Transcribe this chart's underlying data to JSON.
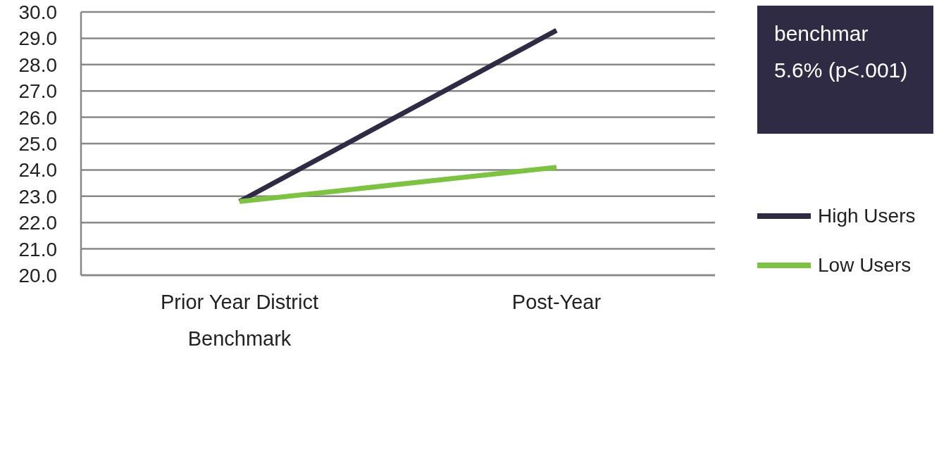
{
  "chart_data": {
    "type": "line",
    "categories": [
      "Prior Year District Benchmark",
      "Post-Year"
    ],
    "series": [
      {
        "name": "High Users",
        "color": "#2f2b45",
        "values": [
          22.8,
          29.3
        ]
      },
      {
        "name": "Low Users",
        "color": "#7dc242",
        "values": [
          22.8,
          24.1
        ]
      }
    ],
    "ylim": [
      20,
      30
    ],
    "yticks": [
      {
        "value": 20,
        "label": "20.0"
      },
      {
        "value": 21,
        "label": "21.0"
      },
      {
        "value": 22,
        "label": "22.0"
      },
      {
        "value": 23,
        "label": "23.0"
      },
      {
        "value": 24,
        "label": "24.0"
      },
      {
        "value": 25,
        "label": "25.0"
      },
      {
        "value": 26,
        "label": "26.0"
      },
      {
        "value": 27,
        "label": "27.0"
      },
      {
        "value": 28,
        "label": "28.0"
      },
      {
        "value": 29,
        "label": "29.0"
      },
      {
        "value": 30,
        "label": "30.0"
      }
    ],
    "grid": "y",
    "legend": "right",
    "marker": "none",
    "line_style": "solid",
    "annotations": [
      "benchmar",
      "5.6% (p<.001)"
    ]
  }
}
